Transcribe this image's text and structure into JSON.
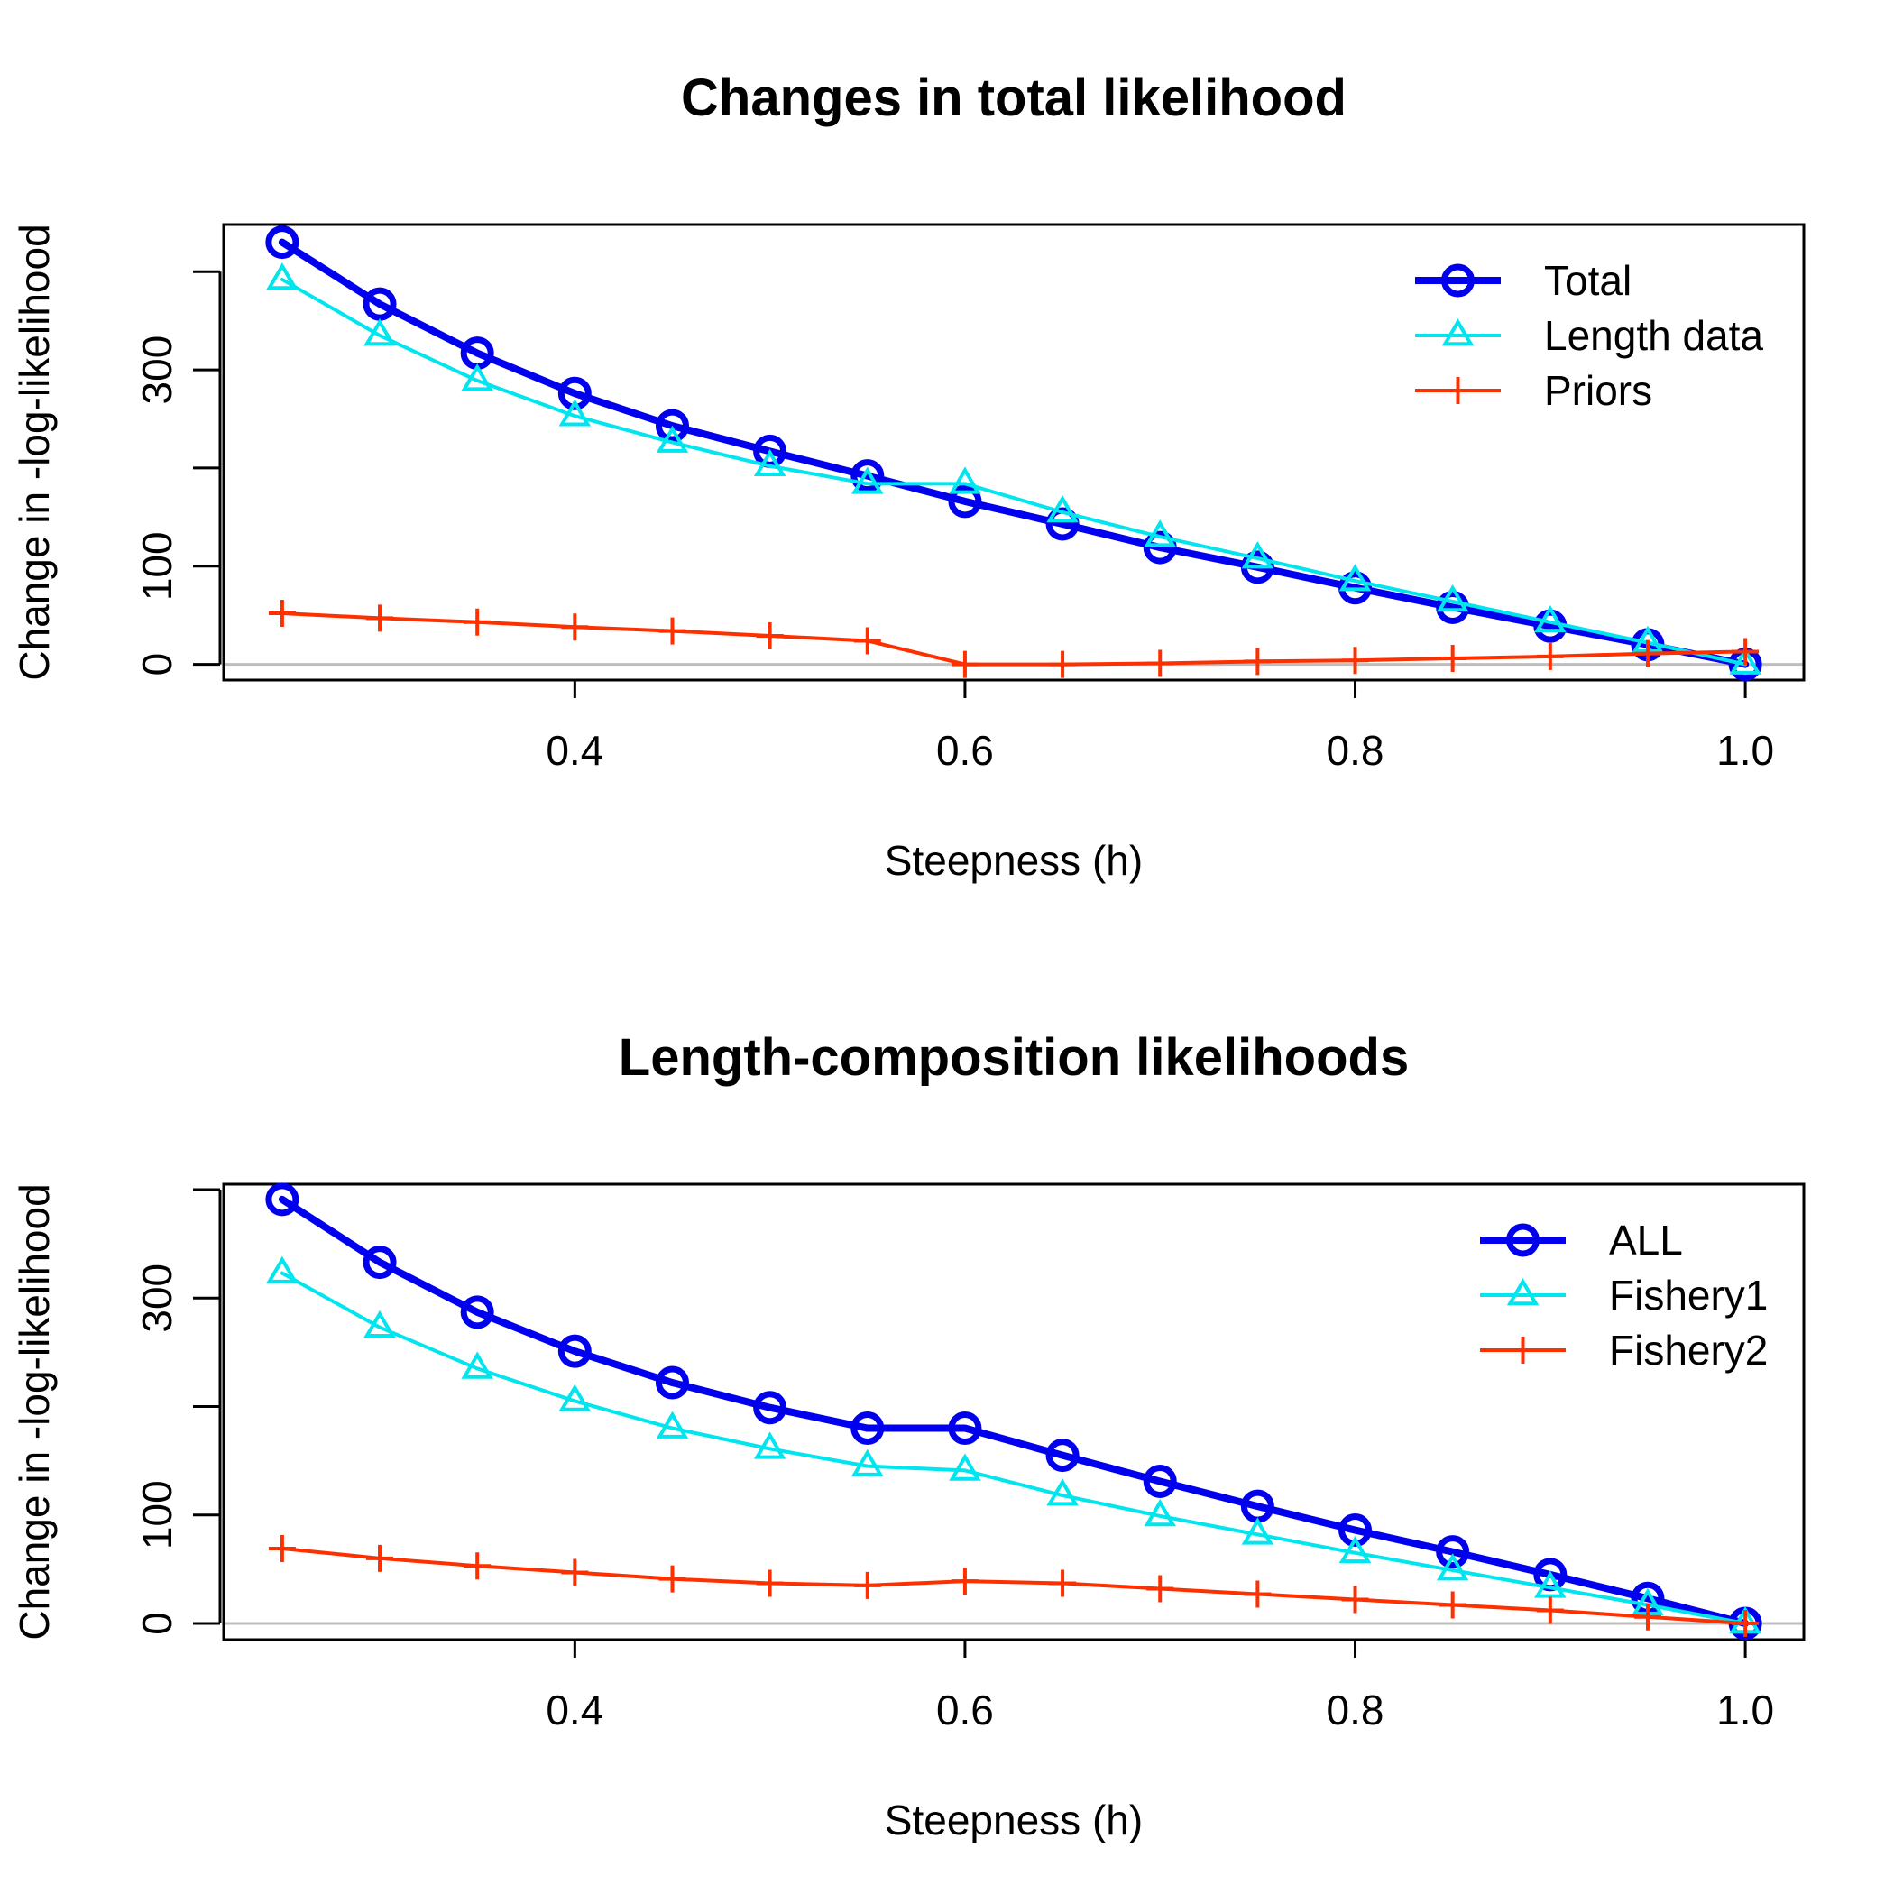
{
  "chart_data": [
    {
      "type": "line",
      "title": "Changes in total likelihood",
      "xlabel": "Steepness (h)",
      "ylabel": "Change in -log-likelihood",
      "xlim": [
        0.22,
        1.03
      ],
      "ylim": [
        -16,
        448
      ],
      "x_ticks": [
        0.4,
        0.6,
        0.8,
        1.0
      ],
      "x_tick_labels": [
        "0.4",
        "0.6",
        "0.8",
        "1.0"
      ],
      "y_ticks": [
        0,
        100,
        200,
        300,
        400
      ],
      "y_tick_labels": [
        "0",
        "100",
        "",
        "300",
        ""
      ],
      "grid": false,
      "legend_position": "top-right",
      "x": [
        0.25,
        0.3,
        0.35,
        0.4,
        0.45,
        0.5,
        0.55,
        0.6,
        0.65,
        0.7,
        0.75,
        0.8,
        0.85,
        0.9,
        0.95,
        1.0
      ],
      "series": [
        {
          "name": "Total",
          "color": "#0000ee",
          "marker": "circle",
          "line_width": 8,
          "values": [
            430,
            367,
            317,
            276,
            243,
            217,
            192,
            166,
            143,
            119,
            99,
            78,
            58,
            39,
            20,
            0
          ]
        },
        {
          "name": "Length data",
          "color": "#00e5ee",
          "marker": "triangle",
          "line_width": 4,
          "values": [
            392,
            335,
            289,
            253,
            226,
            202,
            184,
            184,
            155,
            130,
            108,
            85,
            64,
            43,
            22,
            0
          ]
        },
        {
          "name": "Priors",
          "color": "#ff3000",
          "marker": "plus",
          "line_width": 4,
          "values": [
            52,
            47,
            43,
            38,
            34,
            29,
            24,
            0,
            0,
            1,
            3,
            4,
            6,
            8,
            11,
            13
          ]
        }
      ]
    },
    {
      "type": "line",
      "title": "Length-composition likelihoods",
      "xlabel": "Steepness (h)",
      "ylabel": "Change in -log-likelihood",
      "xlim": [
        0.22,
        1.03
      ],
      "ylim": [
        -15,
        405
      ],
      "x_ticks": [
        0.4,
        0.6,
        0.8,
        1.0
      ],
      "x_tick_labels": [
        "0.4",
        "0.6",
        "0.8",
        "1.0"
      ],
      "y_ticks": [
        0,
        100,
        200,
        300,
        400
      ],
      "y_tick_labels": [
        "0",
        "100",
        "",
        "300",
        ""
      ],
      "grid": false,
      "legend_position": "top-right",
      "x": [
        0.25,
        0.3,
        0.35,
        0.4,
        0.45,
        0.5,
        0.55,
        0.6,
        0.65,
        0.7,
        0.75,
        0.8,
        0.85,
        0.9,
        0.95,
        1.0
      ],
      "series": [
        {
          "name": "ALL",
          "color": "#0000ee",
          "marker": "circle",
          "line_width": 8,
          "values": [
            391,
            333,
            287,
            251,
            222,
            199,
            180,
            180,
            155,
            131,
            108,
            86,
            66,
            45,
            23,
            0
          ]
        },
        {
          "name": "Fishery1",
          "color": "#00e5ee",
          "marker": "triangle",
          "line_width": 4,
          "values": [
            323,
            273,
            235,
            205,
            180,
            161,
            145,
            141,
            118,
            99,
            82,
            65,
            49,
            33,
            17,
            0
          ]
        },
        {
          "name": "Fishery2",
          "color": "#ff3000",
          "marker": "plus",
          "line_width": 4,
          "values": [
            69,
            60,
            53,
            47,
            41,
            37,
            35,
            39,
            37,
            32,
            27,
            22,
            17,
            12,
            6,
            0
          ]
        }
      ]
    }
  ]
}
